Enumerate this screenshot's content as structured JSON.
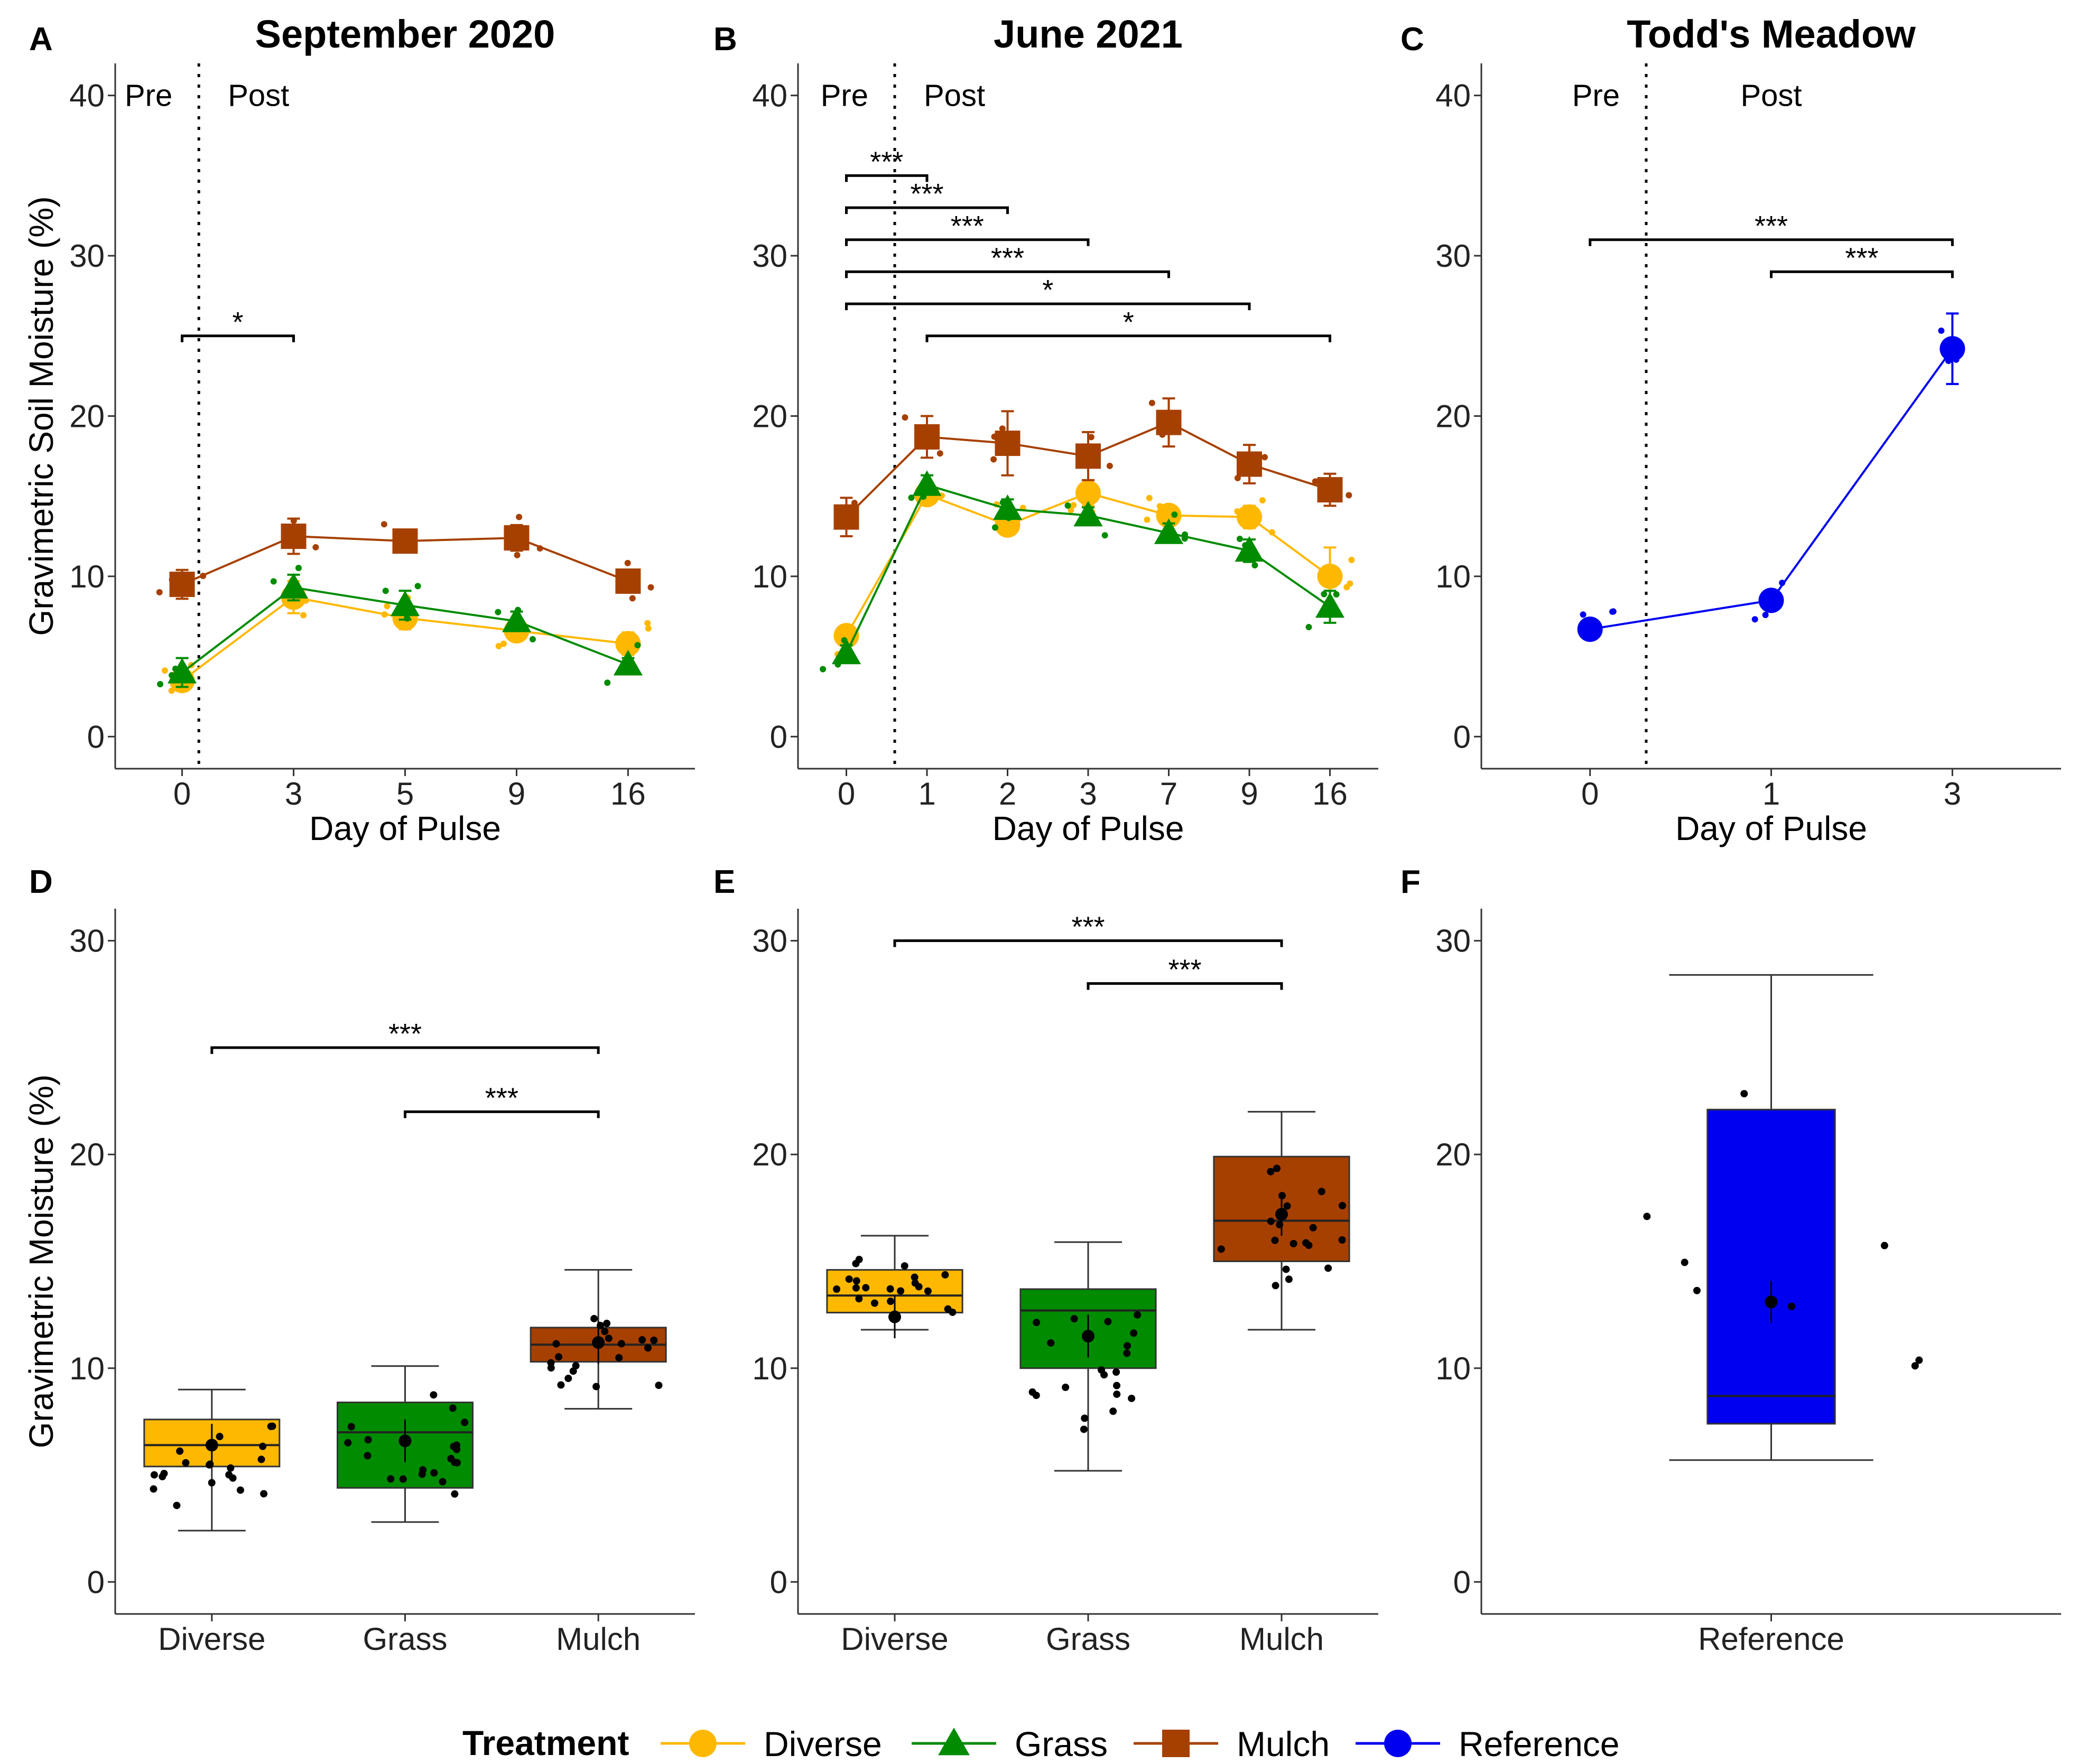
{
  "colors": {
    "Diverse": "#FFB800",
    "Grass": "#008B00",
    "Mulch": "#A64000",
    "Reference": "#0000F0"
  },
  "chart_data": [
    {
      "panel": "A",
      "type": "line",
      "title": "September 2020",
      "xlabel": "Day of Pulse",
      "ylabel": "Gravimetric Soil Moisture (%)",
      "ylim": [
        -2,
        42
      ],
      "yticks": [
        0,
        10,
        20,
        30,
        40
      ],
      "categories": [
        "0",
        "3",
        "5",
        "9",
        "16"
      ],
      "pre_label": "Pre",
      "post_label": "Post",
      "divider_after_index": 0.15,
      "series": [
        {
          "name": "Diverse",
          "marker": "circle",
          "values": [
            3.5,
            8.7,
            7.4,
            6.6,
            5.8
          ],
          "errors": [
            0.6,
            1.0,
            0.7,
            0.6,
            0.7
          ]
        },
        {
          "name": "Grass",
          "marker": "triangle",
          "values": [
            4.0,
            9.3,
            8.2,
            7.2,
            4.5
          ],
          "errors": [
            0.9,
            0.8,
            0.9,
            0.6,
            0.4
          ]
        },
        {
          "name": "Mulch",
          "marker": "square",
          "values": [
            9.5,
            12.5,
            12.2,
            12.4,
            9.7
          ],
          "errors": [
            0.9,
            1.1,
            0.5,
            0.8,
            0.6
          ]
        }
      ],
      "brackets": [
        {
          "from": 0,
          "to": 1,
          "y": 25,
          "label": "*"
        }
      ]
    },
    {
      "panel": "B",
      "type": "line",
      "title": "June 2021",
      "xlabel": "Day of Pulse",
      "ylabel": "",
      "ylim": [
        -2,
        42
      ],
      "yticks": [
        0,
        10,
        20,
        30,
        40
      ],
      "categories": [
        "0",
        "1",
        "2",
        "3",
        "7",
        "9",
        "16"
      ],
      "pre_label": "Pre",
      "post_label": "Post",
      "divider_after_index": 0.6,
      "series": [
        {
          "name": "Diverse",
          "marker": "circle",
          "values": [
            6.3,
            15.1,
            13.2,
            15.2,
            13.8,
            13.7,
            10.0
          ],
          "errors": [
            0.5,
            0.6,
            0.5,
            0.8,
            0.6,
            0.7,
            1.8
          ]
        },
        {
          "name": "Grass",
          "marker": "triangle",
          "values": [
            5.2,
            15.7,
            14.2,
            13.8,
            12.7,
            11.6,
            8.1
          ],
          "errors": [
            0.5,
            0.6,
            0.6,
            0.5,
            0.6,
            0.7,
            1.0
          ]
        },
        {
          "name": "Mulch",
          "marker": "square",
          "values": [
            13.7,
            18.7,
            18.3,
            17.5,
            19.6,
            17.0,
            15.4
          ],
          "errors": [
            1.2,
            1.3,
            2.0,
            1.5,
            1.5,
            1.2,
            1.0
          ]
        }
      ],
      "brackets": [
        {
          "from": 0,
          "to": 1,
          "y": 35,
          "label": "***"
        },
        {
          "from": 0,
          "to": 2,
          "y": 33,
          "label": "***"
        },
        {
          "from": 0,
          "to": 3,
          "y": 31,
          "label": "***"
        },
        {
          "from": 0,
          "to": 4,
          "y": 29,
          "label": "***"
        },
        {
          "from": 0,
          "to": 5,
          "y": 27,
          "label": "*"
        },
        {
          "from": 1,
          "to": 6,
          "y": 25,
          "label": "*"
        }
      ]
    },
    {
      "panel": "C",
      "type": "line",
      "title": "Todd's Meadow",
      "xlabel": "Day of Pulse",
      "ylabel": "",
      "ylim": [
        -2,
        42
      ],
      "yticks": [
        0,
        10,
        20,
        30,
        40
      ],
      "categories": [
        "0",
        "1",
        "3"
      ],
      "pre_label": "Pre",
      "post_label": "Post",
      "divider_after_index": 0.31,
      "series": [
        {
          "name": "Reference",
          "marker": "circle",
          "values": [
            6.7,
            8.5,
            24.2
          ],
          "errors": [
            0.5,
            0.4,
            2.2
          ]
        }
      ],
      "brackets": [
        {
          "from": 0,
          "to": 2,
          "y": 31,
          "label": "***"
        },
        {
          "from": 1,
          "to": 2,
          "y": 29,
          "label": "***"
        }
      ]
    },
    {
      "panel": "D",
      "type": "box",
      "title": "",
      "ylabel": "Gravimetric Moisture (%)",
      "ylim": [
        -1.5,
        31.5
      ],
      "yticks": [
        0,
        10,
        20,
        30
      ],
      "categories": [
        "Diverse",
        "Grass",
        "Mulch"
      ],
      "boxes": [
        {
          "name": "Diverse",
          "min": 2.4,
          "q1": 5.4,
          "median": 6.4,
          "q3": 7.6,
          "max": 9.0,
          "mean": 6.4
        },
        {
          "name": "Grass",
          "min": 2.8,
          "q1": 4.4,
          "median": 7.0,
          "q3": 8.4,
          "max": 10.1,
          "mean": 6.6
        },
        {
          "name": "Mulch",
          "min": 8.1,
          "q1": 10.3,
          "median": 11.1,
          "q3": 11.9,
          "max": 14.6,
          "mean": 11.2
        }
      ],
      "brackets": [
        {
          "from": 0,
          "to": 2,
          "y": 25,
          "label": "***"
        },
        {
          "from": 1,
          "to": 2,
          "y": 22,
          "label": "***"
        }
      ]
    },
    {
      "panel": "E",
      "type": "box",
      "title": "",
      "ylabel": "",
      "ylim": [
        -1.5,
        31.5
      ],
      "yticks": [
        0,
        10,
        20,
        30
      ],
      "categories": [
        "Diverse",
        "Grass",
        "Mulch"
      ],
      "boxes": [
        {
          "name": "Diverse",
          "min": 11.8,
          "q1": 12.6,
          "median": 13.4,
          "q3": 14.6,
          "max": 16.2,
          "mean": 12.4
        },
        {
          "name": "Grass",
          "min": 5.2,
          "q1": 10.0,
          "median": 12.7,
          "q3": 13.7,
          "max": 15.9,
          "mean": 11.5
        },
        {
          "name": "Mulch",
          "min": 11.8,
          "q1": 15.0,
          "median": 16.9,
          "q3": 19.9,
          "max": 22.0,
          "mean": 17.2
        }
      ],
      "brackets": [
        {
          "from": 0,
          "to": 2,
          "y": 30,
          "label": "***"
        },
        {
          "from": 1,
          "to": 2,
          "y": 28,
          "label": "***"
        }
      ]
    },
    {
      "panel": "F",
      "type": "box",
      "title": "",
      "ylabel": "",
      "ylim": [
        -1.5,
        31.5
      ],
      "yticks": [
        0,
        10,
        20,
        30
      ],
      "categories": [
        "Reference"
      ],
      "boxes": [
        {
          "name": "Reference",
          "min": 5.7,
          "q1": 7.4,
          "median": 8.7,
          "q3": 22.1,
          "max": 28.4,
          "mean": 13.1
        }
      ],
      "brackets": []
    }
  ],
  "legend": {
    "title": "Treatment",
    "items": [
      {
        "label": "Diverse",
        "marker": "circle"
      },
      {
        "label": "Grass",
        "marker": "triangle"
      },
      {
        "label": "Mulch",
        "marker": "square"
      },
      {
        "label": "Reference",
        "marker": "circle"
      }
    ]
  }
}
